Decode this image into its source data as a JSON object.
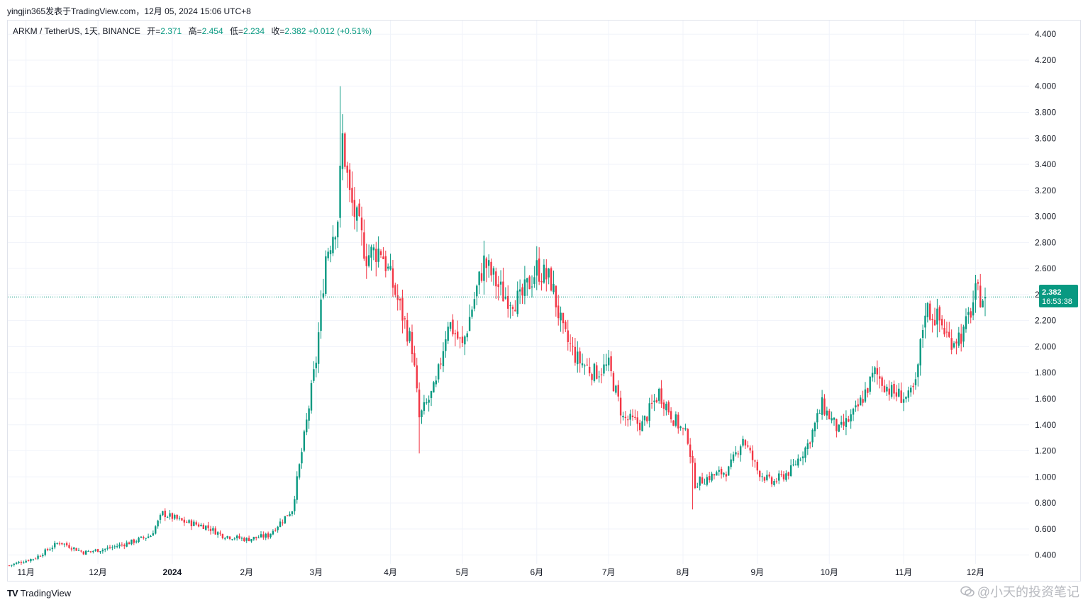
{
  "header": {
    "publisher_line": "yingjin365发表于TradingView.com，12月 05, 2024 15:06 UTC+8"
  },
  "legend": {
    "symbol": "ARKM / TetherUS, 1天, BINANCE",
    "open_label": "开=",
    "open": "2.371",
    "high_label": "高=",
    "high": "2.454",
    "low_label": "低=",
    "low": "2.234",
    "close_label": "收=",
    "close": "2.382",
    "change": "+0.012 (+0.51%)"
  },
  "price_tag": {
    "price": "2.382",
    "countdown": "16:53:38"
  },
  "footer": {
    "brand": "TradingView",
    "watermark": "@小天的投资笔记"
  },
  "colors": {
    "up": "#089981",
    "down": "#f23645",
    "grid": "#f0f3fa",
    "text": "#131722"
  },
  "chart_data": {
    "type": "candlestick",
    "interval": "1D",
    "y_axis": {
      "range": [
        0.3,
        4.45
      ],
      "ticks": [
        "0.400",
        "0.600",
        "0.800",
        "1.000",
        "1.200",
        "1.400",
        "1.600",
        "1.800",
        "2.000",
        "2.200",
        "2.400",
        "2.600",
        "2.800",
        "3.000",
        "3.200",
        "3.400",
        "3.600",
        "3.800",
        "4.000",
        "4.200",
        "4.400"
      ]
    },
    "x_axis": {
      "ticks": [
        {
          "label": "11月",
          "bold": false
        },
        {
          "label": "12月",
          "bold": false
        },
        {
          "label": "2024",
          "bold": true
        },
        {
          "label": "2月",
          "bold": false
        },
        {
          "label": "3月",
          "bold": false
        },
        {
          "label": "4月",
          "bold": false
        },
        {
          "label": "5月",
          "bold": false
        },
        {
          "label": "6月",
          "bold": false
        },
        {
          "label": "7月",
          "bold": false
        },
        {
          "label": "8月",
          "bold": false
        },
        {
          "label": "9月",
          "bold": false
        },
        {
          "label": "10月",
          "bold": false
        },
        {
          "label": "11月",
          "bold": false
        },
        {
          "label": "12月",
          "bold": false
        }
      ]
    },
    "last_price": 2.382,
    "anchors_approx_close": [
      [
        "2023-10-25",
        0.32
      ],
      [
        "2023-11-05",
        0.38
      ],
      [
        "2023-11-15",
        0.5
      ],
      [
        "2023-11-25",
        0.42
      ],
      [
        "2023-12-05",
        0.45
      ],
      [
        "2023-12-15",
        0.5
      ],
      [
        "2023-12-23",
        0.55
      ],
      [
        "2023-12-28",
        0.72
      ],
      [
        "2024-01-05",
        0.66
      ],
      [
        "2024-01-15",
        0.62
      ],
      [
        "2024-01-22",
        0.55
      ],
      [
        "2024-02-01",
        0.52
      ],
      [
        "2024-02-10",
        0.55
      ],
      [
        "2024-02-20",
        0.75
      ],
      [
        "2024-02-25",
        1.3
      ],
      [
        "2024-03-01",
        1.9
      ],
      [
        "2024-03-05",
        2.7
      ],
      [
        "2024-03-10",
        3.0
      ],
      [
        "2024-03-12",
        3.6
      ],
      [
        "2024-03-15",
        3.15
      ],
      [
        "2024-03-22",
        2.7
      ],
      [
        "2024-03-28",
        2.75
      ],
      [
        "2024-04-05",
        2.3
      ],
      [
        "2024-04-10",
        2.0
      ],
      [
        "2024-04-13",
        1.45
      ],
      [
        "2024-04-20",
        1.7
      ],
      [
        "2024-04-25",
        2.2
      ],
      [
        "2024-05-01",
        2.0
      ],
      [
        "2024-05-05",
        2.3
      ],
      [
        "2024-05-10",
        2.65
      ],
      [
        "2024-05-18",
        2.4
      ],
      [
        "2024-05-25",
        2.35
      ],
      [
        "2024-06-01",
        2.6
      ],
      [
        "2024-06-07",
        2.5
      ],
      [
        "2024-06-12",
        2.1
      ],
      [
        "2024-06-18",
        1.9
      ],
      [
        "2024-06-25",
        1.8
      ],
      [
        "2024-07-01",
        1.85
      ],
      [
        "2024-07-07",
        1.45
      ],
      [
        "2024-07-15",
        1.4
      ],
      [
        "2024-07-22",
        1.65
      ],
      [
        "2024-07-28",
        1.45
      ],
      [
        "2024-08-03",
        1.3
      ],
      [
        "2024-08-06",
        0.95
      ],
      [
        "2024-08-12",
        1.0
      ],
      [
        "2024-08-20",
        1.05
      ],
      [
        "2024-08-26",
        1.3
      ],
      [
        "2024-09-01",
        1.05
      ],
      [
        "2024-09-07",
        0.95
      ],
      [
        "2024-09-15",
        1.05
      ],
      [
        "2024-09-22",
        1.25
      ],
      [
        "2024-09-28",
        1.55
      ],
      [
        "2024-10-05",
        1.35
      ],
      [
        "2024-10-12",
        1.5
      ],
      [
        "2024-10-20",
        1.8
      ],
      [
        "2024-10-27",
        1.65
      ],
      [
        "2024-11-03",
        1.6
      ],
      [
        "2024-11-06",
        1.7
      ],
      [
        "2024-11-10",
        2.3
      ],
      [
        "2024-11-16",
        2.2
      ],
      [
        "2024-11-20",
        2.05
      ],
      [
        "2024-11-26",
        2.1
      ],
      [
        "2024-12-01",
        2.4
      ],
      [
        "2024-12-05",
        2.382
      ]
    ]
  }
}
